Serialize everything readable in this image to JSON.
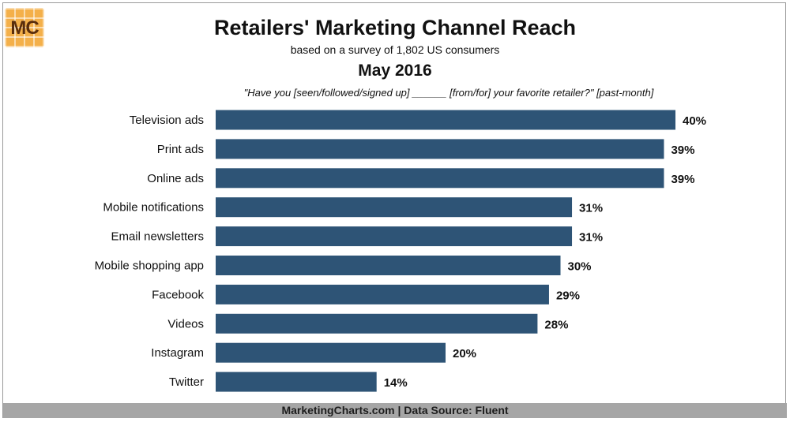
{
  "logo": {
    "text": "MC"
  },
  "header": {
    "title": "Retailers' Marketing Channel Reach",
    "subtitle": "based on a survey of 1,802 US consumers",
    "date": "May 2016",
    "question": "\"Have you [seen/followed/signed up] ______ [from/for] your favorite retailer?\" [past-month]"
  },
  "footer": {
    "text": "MarketingCharts.com | Data Source: Fluent"
  },
  "chart_data": {
    "type": "bar",
    "orientation": "horizontal",
    "categories": [
      "Television ads",
      "Print ads",
      "Online ads",
      "Mobile notifications",
      "Email newsletters",
      "Mobile shopping app",
      "Facebook",
      "Videos",
      "Instagram",
      "Twitter"
    ],
    "values": [
      40,
      39,
      39,
      31,
      31,
      30,
      29,
      28,
      20,
      14
    ],
    "data_labels": [
      "40%",
      "39%",
      "39%",
      "31%",
      "31%",
      "30%",
      "29%",
      "28%",
      "20%",
      "14%"
    ],
    "unit": "%",
    "xlim": [
      0,
      40
    ],
    "grid": false,
    "bar_color": "#2e5476"
  }
}
